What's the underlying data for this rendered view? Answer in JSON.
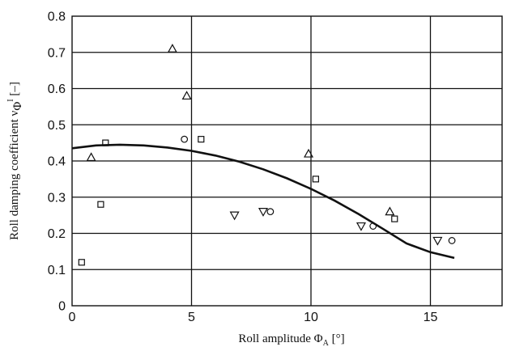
{
  "chart_data": {
    "type": "scatter",
    "title": "",
    "xlabel": "Roll amplitude Φ_A [°]",
    "ylabel": "Roll damping coefficient ν_Φ^I [–]",
    "xlabel_parts": {
      "main": "Roll amplitude Φ",
      "sub": "A",
      "tail": " [°]"
    },
    "ylabel_parts": {
      "main": "Roll damping coefficient ν",
      "sub": "Φ",
      "sup": "I",
      "tail": " [–]"
    },
    "xlim": [
      0,
      18
    ],
    "ylim": [
      0,
      0.8
    ],
    "grid": true,
    "x_ticks": [
      0,
      5,
      10,
      15
    ],
    "x_tick_labels": [
      "0",
      "5",
      "10",
      "15"
    ],
    "y_ticks": [
      0,
      0.1,
      0.2,
      0.3,
      0.4,
      0.5,
      0.6,
      0.7,
      0.8
    ],
    "y_tick_labels": [
      "0",
      "0.1",
      "0.2",
      "0.3",
      "0.4",
      "0.5",
      "0.6",
      "0.7",
      "0.8"
    ],
    "series": [
      {
        "marker": "triangle-up",
        "points": [
          [
            0.8,
            0.41
          ],
          [
            4.2,
            0.71
          ],
          [
            4.8,
            0.58
          ],
          [
            9.9,
            0.42
          ],
          [
            13.3,
            0.26
          ]
        ]
      },
      {
        "marker": "square",
        "points": [
          [
            0.4,
            0.12
          ],
          [
            1.2,
            0.28
          ],
          [
            1.4,
            0.45
          ],
          [
            5.4,
            0.46
          ],
          [
            10.2,
            0.35
          ],
          [
            13.5,
            0.24
          ]
        ]
      },
      {
        "marker": "circle",
        "points": [
          [
            4.7,
            0.46
          ],
          [
            8.3,
            0.26
          ],
          [
            12.6,
            0.22
          ],
          [
            15.9,
            0.18
          ]
        ]
      },
      {
        "marker": "triangle-down",
        "points": [
          [
            6.8,
            0.25
          ],
          [
            8.0,
            0.26
          ],
          [
            12.1,
            0.22
          ],
          [
            15.3,
            0.18
          ]
        ]
      }
    ],
    "fit_curve": {
      "type": "line",
      "points": [
        [
          0,
          0.435
        ],
        [
          1,
          0.443
        ],
        [
          2,
          0.445
        ],
        [
          3,
          0.443
        ],
        [
          4,
          0.437
        ],
        [
          5,
          0.428
        ],
        [
          6,
          0.415
        ],
        [
          7,
          0.398
        ],
        [
          8,
          0.377
        ],
        [
          9,
          0.352
        ],
        [
          10,
          0.323
        ],
        [
          11,
          0.29
        ],
        [
          12,
          0.253
        ],
        [
          13,
          0.213
        ],
        [
          14,
          0.172
        ],
        [
          15,
          0.148
        ],
        [
          16,
          0.132
        ]
      ]
    }
  }
}
